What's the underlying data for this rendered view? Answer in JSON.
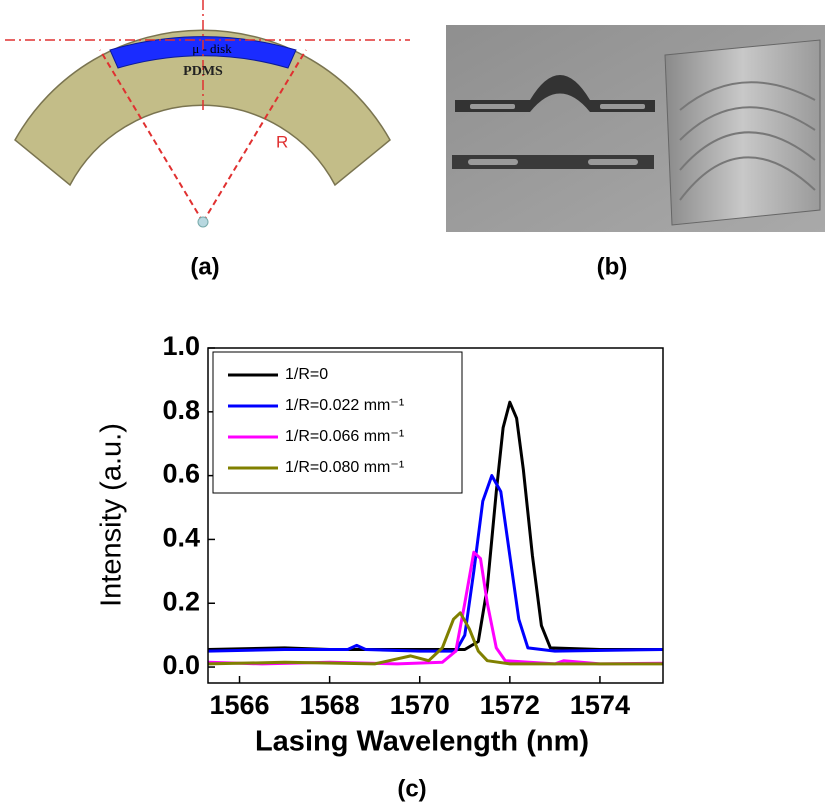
{
  "diagram": {
    "labels": {
      "disk": "μ - disk",
      "pdms": "PDMS",
      "radius": "R"
    },
    "caption": "(a)"
  },
  "photo": {
    "caption": "(b)"
  },
  "chart_data": {
    "type": "line",
    "caption": "(c)",
    "x_label": "Lasing Wavelength (nm)",
    "y_label": "Intensity (a.u.)",
    "xlim": [
      1565.3,
      1575.4
    ],
    "ylim": [
      -0.05,
      1.0
    ],
    "xticks": [
      1566,
      1568,
      1570,
      1572,
      1574
    ],
    "yticks": [
      {
        "value": 0,
        "label": "0.0"
      },
      {
        "value": 0.2,
        "label": "0.2"
      },
      {
        "value": 0.4,
        "label": "0.4"
      },
      {
        "value": 0.6,
        "label": "0.6"
      },
      {
        "value": 0.8,
        "label": "0.8"
      },
      {
        "value": 1,
        "label": "1.0"
      }
    ],
    "legend": "top-left",
    "series": [
      {
        "name": "1/R=0",
        "color": "#000000",
        "x": [
          1565.3,
          1567,
          1568,
          1570,
          1571,
          1571.3,
          1571.5,
          1571.7,
          1571.85,
          1572.0,
          1572.15,
          1572.3,
          1572.5,
          1572.7,
          1572.9,
          1574,
          1575.4
        ],
        "values": [
          0.055,
          0.06,
          0.055,
          0.055,
          0.055,
          0.08,
          0.25,
          0.55,
          0.75,
          0.83,
          0.78,
          0.62,
          0.35,
          0.13,
          0.06,
          0.055,
          0.055
        ]
      },
      {
        "name": "1/R=0.022 mm⁻¹",
        "color": "#0000ff",
        "x": [
          1565.3,
          1567,
          1568.4,
          1568.6,
          1568.8,
          1570,
          1570.8,
          1571.0,
          1571.2,
          1571.4,
          1571.6,
          1571.8,
          1572.0,
          1572.2,
          1572.4,
          1573,
          1575.4
        ],
        "values": [
          0.05,
          0.055,
          0.055,
          0.068,
          0.055,
          0.05,
          0.05,
          0.1,
          0.3,
          0.52,
          0.6,
          0.55,
          0.35,
          0.15,
          0.06,
          0.05,
          0.055
        ]
      },
      {
        "name": "1/R=0.066 mm⁻¹",
        "color": "#ff00ff",
        "x": [
          1565.3,
          1566.5,
          1568,
          1569.5,
          1570.5,
          1570.8,
          1571.0,
          1571.2,
          1571.35,
          1571.5,
          1571.7,
          1571.9,
          1573,
          1573.2,
          1574,
          1575.4
        ],
        "values": [
          0.015,
          0.01,
          0.015,
          0.01,
          0.015,
          0.05,
          0.2,
          0.36,
          0.34,
          0.2,
          0.06,
          0.02,
          0.01,
          0.02,
          0.01,
          0.012
        ]
      },
      {
        "name": "1/R=0.080 mm⁻¹",
        "color": "#808000",
        "x": [
          1565.3,
          1567,
          1569,
          1569.8,
          1570.2,
          1570.5,
          1570.75,
          1570.9,
          1571.1,
          1571.3,
          1571.5,
          1572,
          1575.4
        ],
        "values": [
          0.01,
          0.015,
          0.01,
          0.035,
          0.02,
          0.06,
          0.15,
          0.17,
          0.12,
          0.05,
          0.02,
          0.01,
          0.01
        ]
      }
    ]
  }
}
